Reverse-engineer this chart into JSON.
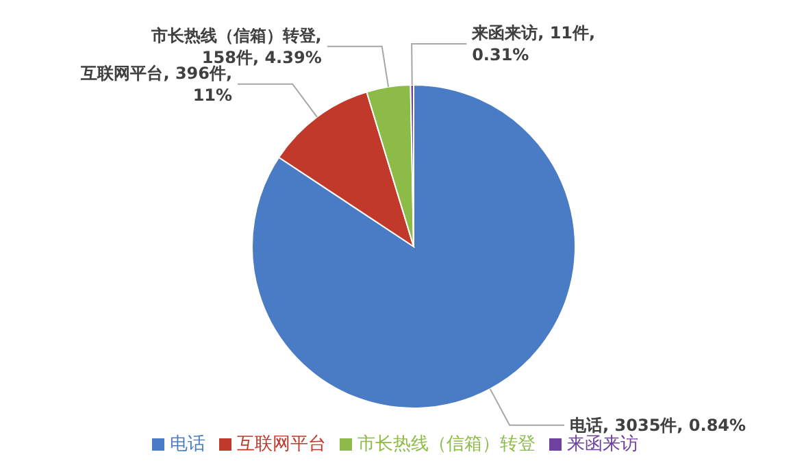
{
  "chart_data": {
    "type": "pie",
    "categories": [
      "电话",
      "互联网平台",
      "市长热线（信箱）转登",
      "来函来访"
    ],
    "values": [
      3035,
      396,
      158,
      11
    ],
    "colors": [
      "#4a7cc6",
      "#c0392b",
      "#8dbb48",
      "#7040a0"
    ],
    "value_labels": [
      "电话, 3035件, 0.84%",
      "互联网平台, 396件, 11%",
      "市长热线（信箱）转登, 158件, 4.39%",
      "来函来访, 11件, 0.31%"
    ],
    "legend": "bottom"
  }
}
